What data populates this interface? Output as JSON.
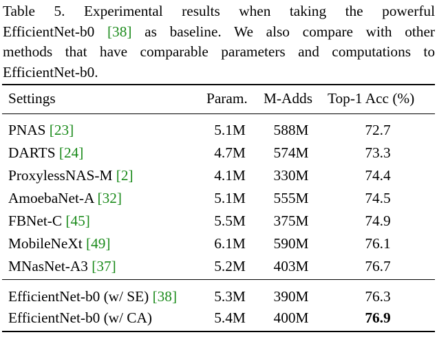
{
  "caption": {
    "line1": "Table 5. Experimental results when taking the powerful",
    "line2_pre": "EfficientNet-b0 ",
    "line2_ref": "[38]",
    "line2_post": " as baseline.  We also compare with other",
    "line3": "methods that have comparable parameters and computations to",
    "line4": "EfficientNet-b0."
  },
  "table": {
    "headers": {
      "settings": "Settings",
      "param": "Param.",
      "madds": "M-Adds",
      "acc": "Top-1 Acc (%)"
    },
    "group1": [
      {
        "name": "PNAS ",
        "ref": "[23]",
        "param": "5.1M",
        "madds": "588M",
        "acc": "72.7"
      },
      {
        "name": "DARTS ",
        "ref": "[24]",
        "param": "4.7M",
        "madds": "574M",
        "acc": "73.3"
      },
      {
        "name": "ProxylessNAS-M ",
        "ref": "[2]",
        "param": "4.1M",
        "madds": "330M",
        "acc": "74.4"
      },
      {
        "name": "AmoebaNet-A ",
        "ref": "[32]",
        "param": "5.1M",
        "madds": "555M",
        "acc": "74.5"
      },
      {
        "name": "FBNet-C ",
        "ref": "[45]",
        "param": "5.5M",
        "madds": "375M",
        "acc": "74.9"
      },
      {
        "name": "MobileNeXt ",
        "ref": "[49]",
        "param": "6.1M",
        "madds": "590M",
        "acc": "76.1"
      },
      {
        "name": "MNasNet-A3 ",
        "ref": "[37]",
        "param": "5.2M",
        "madds": "403M",
        "acc": "76.7"
      }
    ],
    "group2": [
      {
        "name": "EfficientNet-b0 (w/ SE) ",
        "ref": "[38]",
        "param": "5.3M",
        "madds": "390M",
        "acc": "76.3"
      },
      {
        "name": "EfficientNet-b0 (w/ CA)",
        "ref": "",
        "param": "5.4M",
        "madds": "400M",
        "acc": "76.9"
      }
    ]
  },
  "colors": {
    "citation": "#1a8a1a",
    "text": "#000000"
  }
}
